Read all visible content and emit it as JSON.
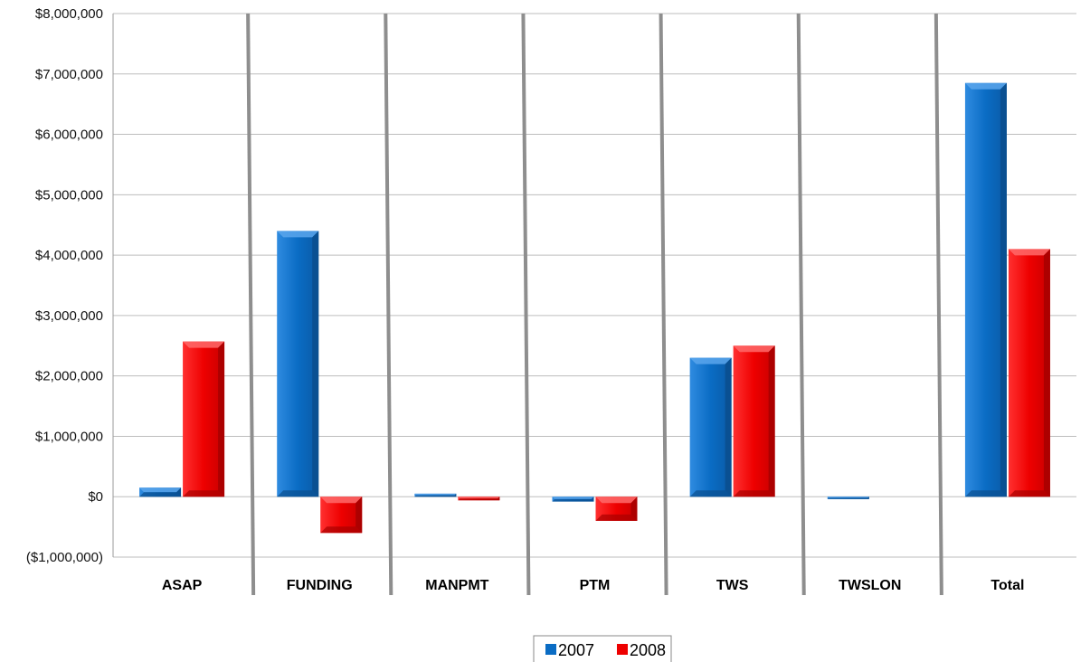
{
  "chart_data": {
    "type": "bar",
    "title": "",
    "subtitle": "",
    "xlabel": "",
    "ylabel": "",
    "categories": [
      "ASAP",
      "FUNDING",
      "MANPMT",
      "PTM",
      "TWS",
      "TWSLON",
      "Total"
    ],
    "series": [
      {
        "name": "2007",
        "color": "#0a6cc4",
        "values": [
          150000,
          4400000,
          50000,
          -80000,
          2300000,
          -40000,
          6850000
        ]
      },
      {
        "name": "2008",
        "color": "#ee0000",
        "values": [
          2570000,
          -600000,
          -60000,
          -400000,
          2500000,
          0,
          4100000
        ]
      }
    ],
    "ylim": [
      -1000000,
      8000000
    ],
    "yticks": [
      -1000000,
      0,
      1000000,
      2000000,
      3000000,
      4000000,
      5000000,
      6000000,
      7000000,
      8000000
    ],
    "ytick_labels": [
      "($1,000,000)",
      "$0",
      "$1,000,000",
      "$2,000,000",
      "$3,000,000",
      "$4,000,000",
      "$5,000,000",
      "$6,000,000",
      "$7,000,000",
      "$8,000,000"
    ],
    "grid": true,
    "legend_position": "bottom-center"
  }
}
